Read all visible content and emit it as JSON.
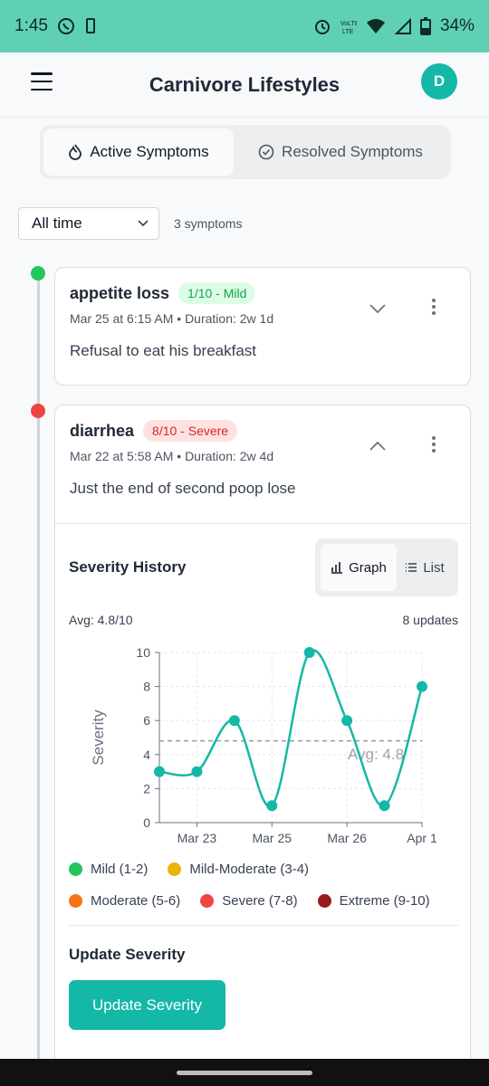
{
  "status_bar": {
    "time": "1:45",
    "battery": "34%"
  },
  "header": {
    "title": "Carnivore Lifestyles",
    "avatar_initial": "D"
  },
  "tabs": [
    {
      "label": "Active Symptoms",
      "icon": "flame-icon",
      "active": true
    },
    {
      "label": "Resolved Symptoms",
      "icon": "check-circle-icon",
      "active": false
    }
  ],
  "filter": {
    "selected": "All time",
    "count_text": "3 symptoms"
  },
  "symptoms": [
    {
      "name": "appetite loss",
      "badge": "1/10 - Mild",
      "meta": "Mar 25 at 6:15 AM • Duration: 2w 1d",
      "note": "Refusal to eat his breakfast",
      "status_color": "#22c55e"
    },
    {
      "name": "diarrhea",
      "badge": "8/10 - Severe",
      "meta": "Mar 22 at 5:58 AM • Duration: 2w 4d",
      "note": "Just the end of second poop lose",
      "status_color": "#ef4444"
    }
  ],
  "history": {
    "title": "Severity History",
    "graph_label": "Graph",
    "list_label": "List",
    "avg_text": "Avg: 4.8/10",
    "updates_text": "8 updates",
    "legend": [
      {
        "label": "Mild (1-2)",
        "color": "#22c55e"
      },
      {
        "label": "Mild-Moderate (3-4)",
        "color": "#eab308"
      },
      {
        "label": "Moderate (5-6)",
        "color": "#f97316"
      },
      {
        "label": "Severe (7-8)",
        "color": "#ef4444"
      },
      {
        "label": "Extreme (9-10)",
        "color": "#991b1b"
      }
    ],
    "update_title": "Update Severity",
    "update_button": "Update Severity"
  },
  "chart_data": {
    "type": "line",
    "ylabel": "Severity",
    "ylim": [
      0,
      10
    ],
    "y_ticks": [
      0,
      2,
      4,
      6,
      8,
      10
    ],
    "x_tick_labels": [
      "Mar 23",
      "Mar 25",
      "Mar 26",
      "Apr 1"
    ],
    "values": [
      3,
      3,
      6,
      1,
      10,
      6,
      1,
      8
    ],
    "average": 4.8,
    "average_label": "Avg: 4.8",
    "line_color": "#14b8a6"
  }
}
